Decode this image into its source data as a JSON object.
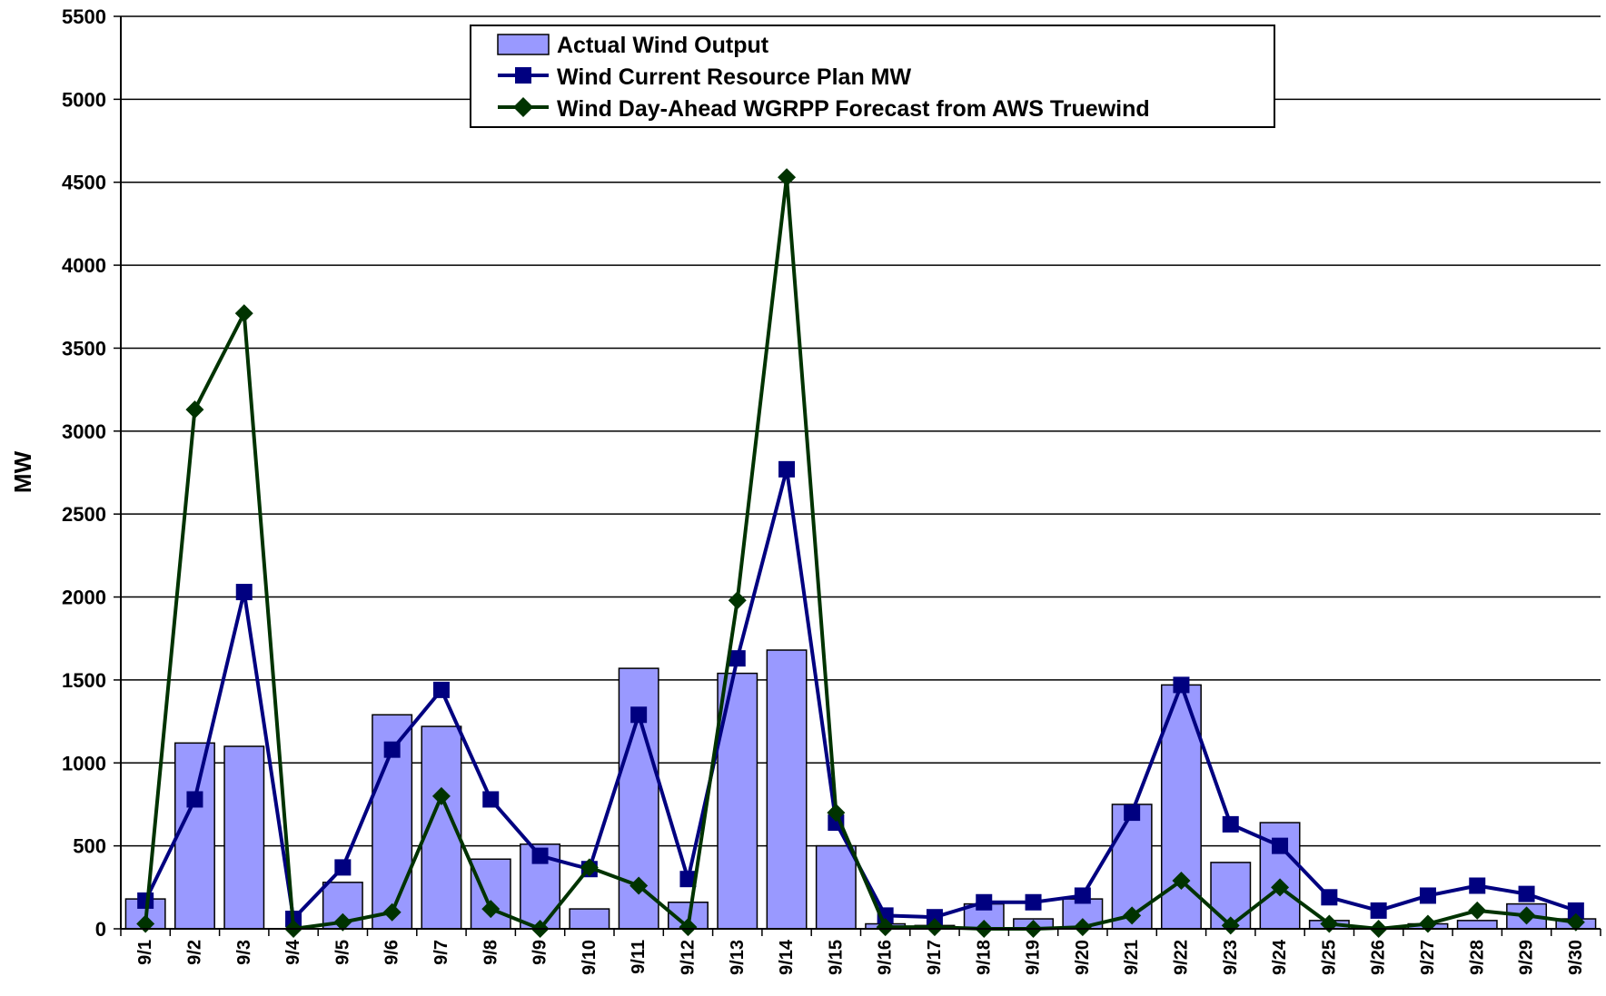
{
  "chart_data": {
    "type": "bar",
    "ylabel": "MW",
    "xlabel": "",
    "ylim": [
      0,
      5500
    ],
    "yticks": [
      0,
      500,
      1000,
      1500,
      2000,
      2500,
      3000,
      3500,
      4000,
      4500,
      5000,
      5500
    ],
    "grid": true,
    "legend_position": "top-center",
    "categories": [
      "9/1",
      "9/2",
      "9/3",
      "9/4",
      "9/5",
      "9/6",
      "9/7",
      "9/8",
      "9/9",
      "9/10",
      "9/11",
      "9/12",
      "9/13",
      "9/14",
      "9/15",
      "9/16",
      "9/17",
      "9/18",
      "9/19",
      "9/20",
      "9/21",
      "9/22",
      "9/23",
      "9/24",
      "9/25",
      "9/26",
      "9/27",
      "9/28",
      "9/29",
      "9/30"
    ],
    "series": [
      {
        "name": "Actual Wind Output",
        "kind": "bar",
        "color": "#9999ff",
        "values": [
          180,
          1120,
          1100,
          0,
          280,
          1290,
          1220,
          420,
          510,
          120,
          1570,
          160,
          1540,
          1680,
          500,
          30,
          20,
          150,
          60,
          180,
          750,
          1470,
          400,
          640,
          50,
          10,
          30,
          50,
          150,
          60
        ]
      },
      {
        "name": "Wind Current Resource Plan MW",
        "kind": "line",
        "color": "#000080",
        "marker": "square",
        "values": [
          170,
          780,
          2030,
          60,
          370,
          1080,
          1440,
          780,
          440,
          360,
          1290,
          300,
          1630,
          2770,
          640,
          80,
          70,
          160,
          160,
          200,
          700,
          1470,
          630,
          500,
          190,
          110,
          200,
          260,
          210,
          110
        ]
      },
      {
        "name": "Wind Day-Ahead WGRPP Forecast from AWS Truewind",
        "kind": "line",
        "color": "#003300",
        "marker": "diamond",
        "values": [
          30,
          3130,
          3710,
          0,
          40,
          100,
          800,
          120,
          0,
          370,
          260,
          10,
          1980,
          4530,
          700,
          10,
          10,
          0,
          0,
          10,
          80,
          290,
          20,
          250,
          30,
          0,
          30,
          110,
          80,
          40
        ]
      }
    ]
  }
}
